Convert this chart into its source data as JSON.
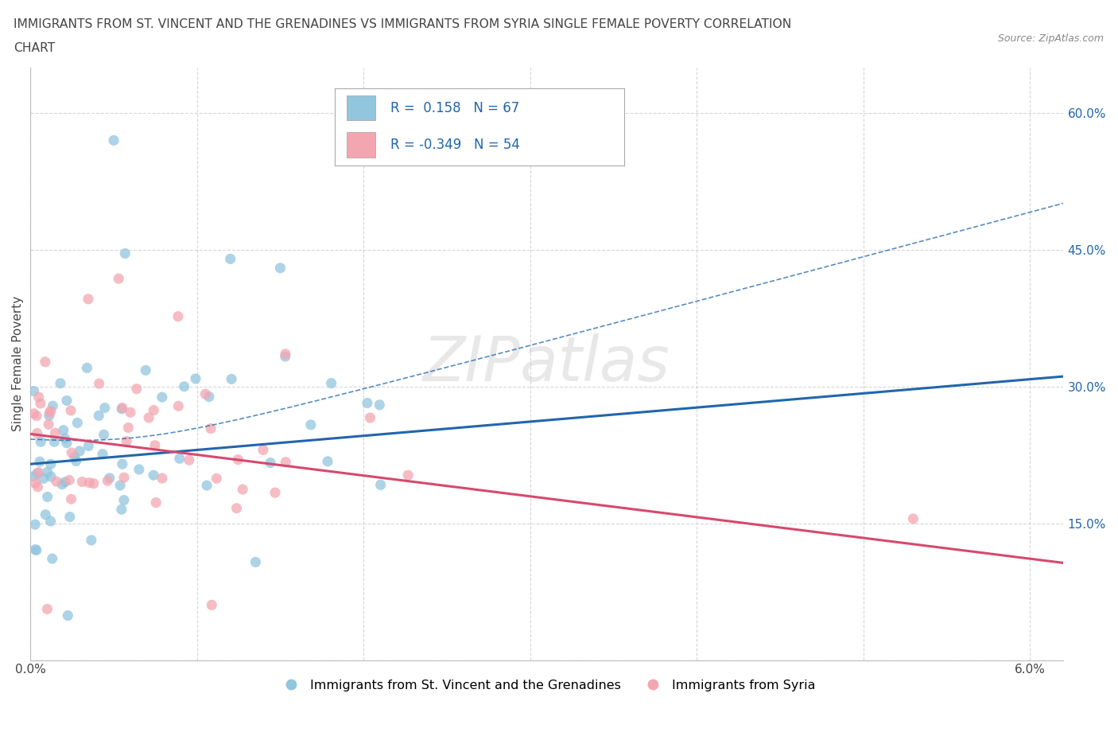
{
  "title_line1": "IMMIGRANTS FROM ST. VINCENT AND THE GRENADINES VS IMMIGRANTS FROM SYRIA SINGLE FEMALE POVERTY CORRELATION",
  "title_line2": "CHART",
  "source": "Source: ZipAtlas.com",
  "ylabel": "Single Female Poverty",
  "R_blue": 0.158,
  "N_blue": 67,
  "R_pink": -0.349,
  "N_pink": 54,
  "xlim": [
    0.0,
    0.062
  ],
  "ylim": [
    0.0,
    0.65
  ],
  "blue_color": "#92c5de",
  "pink_color": "#f4a6b0",
  "blue_line_color": "#2166ac",
  "pink_line_color": "#d6496e",
  "grid_color": "#cccccc",
  "watermark": "ZIPatlas",
  "legend_label_blue": "Immigrants from St. Vincent and the Grenadines",
  "legend_label_pink": "Immigrants from Syria",
  "blue_intercept": 0.218,
  "blue_slope": 1.55,
  "pink_intercept": 0.245,
  "pink_slope": -2.0
}
